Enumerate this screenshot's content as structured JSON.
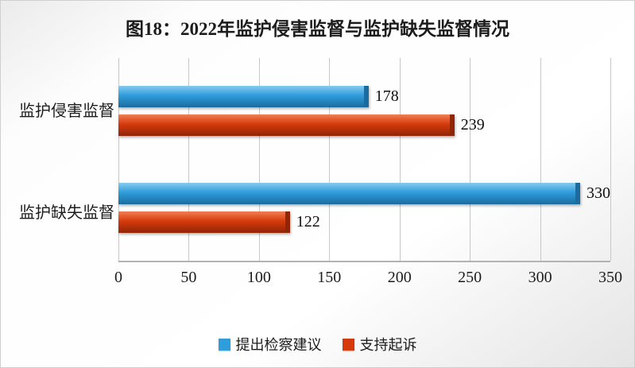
{
  "title": "图18：2022年监护侵害监督与监护缺失监督情况",
  "chart_data": {
    "type": "bar",
    "orientation": "horizontal",
    "title": "图18：2022年监护侵害监督与监护缺失监督情况",
    "categories": [
      "监护侵害监督",
      "监护缺失监督"
    ],
    "series": [
      {
        "name": "提出检察建议",
        "color": "#2F9CDB",
        "color_light": "#86CBEF",
        "color_dark": "#1B6C9E",
        "values": [
          178,
          330
        ]
      },
      {
        "name": "支持起诉",
        "color": "#D63A0C",
        "color_light": "#F08055",
        "color_dark": "#8F2607",
        "values": [
          239,
          122
        ]
      }
    ],
    "xlim": [
      0,
      350
    ],
    "xticks": [
      0,
      50,
      100,
      150,
      200,
      250,
      300,
      350
    ],
    "grid": true,
    "legend_position": "bottom"
  }
}
